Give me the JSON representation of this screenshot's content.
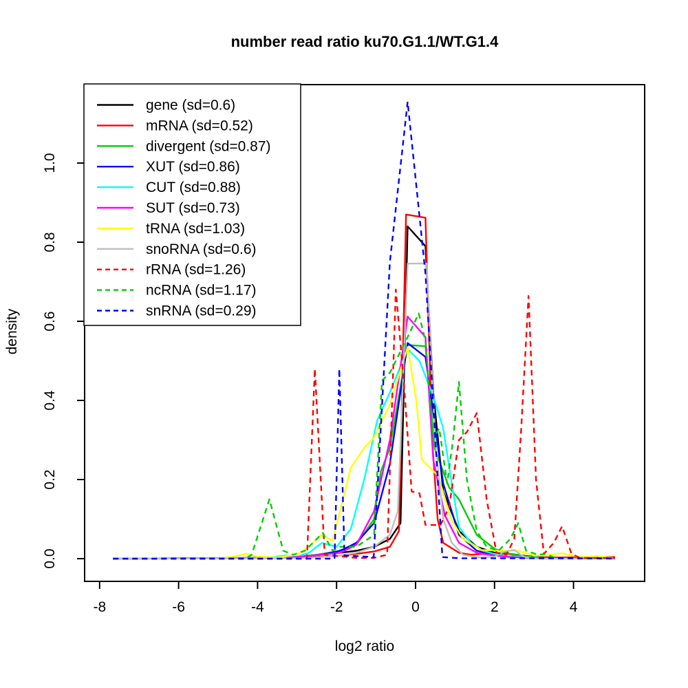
{
  "chart_data": {
    "type": "line",
    "title": "number read ratio ku70.G1.1/WT.G1.4",
    "xlabel": "log2 ratio",
    "ylabel": "density",
    "xlim": [
      -8.4,
      5.8
    ],
    "ylim": [
      -0.05,
      1.2
    ],
    "grid": false,
    "legend_position": "top-left",
    "x_ticks": [
      -8,
      -6,
      -4,
      -2,
      0,
      2,
      4
    ],
    "y_ticks": [
      {
        "value": 0.0,
        "label": "0.0"
      },
      {
        "value": 0.2,
        "label": "0.2"
      },
      {
        "value": 0.4,
        "label": "0.4"
      },
      {
        "value": 0.6,
        "label": "0.6"
      },
      {
        "value": 0.8,
        "label": "0.8"
      },
      {
        "value": 1.0,
        "label": "1.0"
      }
    ],
    "series": [
      {
        "name": "gene",
        "label": "gene (sd=0.6)",
        "color": "#000000",
        "dashed": false,
        "points": [
          [
            -7.66,
            0
          ],
          [
            -3.5,
            0.002
          ],
          [
            -3,
            0.005
          ],
          [
            -2.4,
            0.01
          ],
          [
            -1.9,
            0.015
          ],
          [
            -1.5,
            0.02
          ],
          [
            -1.05,
            0.03
          ],
          [
            -0.65,
            0.05
          ],
          [
            -0.38,
            0.09
          ],
          [
            -0.2,
            0.84
          ],
          [
            0.25,
            0.79
          ],
          [
            0.45,
            0.42
          ],
          [
            0.7,
            0.17
          ],
          [
            1.1,
            0.07
          ],
          [
            1.55,
            0.03
          ],
          [
            2,
            0.015
          ],
          [
            2.4,
            0.012
          ],
          [
            2.85,
            0.006
          ],
          [
            3.3,
            0.003
          ],
          [
            4.15,
            0.001
          ],
          [
            5.05,
            0.001
          ]
        ]
      },
      {
        "name": "mRNA",
        "label": "mRNA (sd=0.52)",
        "color": "#FF0000",
        "dashed": false,
        "points": [
          [
            -7.66,
            0
          ],
          [
            -3.5,
            0.001
          ],
          [
            -2.8,
            0.003
          ],
          [
            -2.35,
            0.005
          ],
          [
            -1.9,
            0.008
          ],
          [
            -1.5,
            0.012
          ],
          [
            -1.05,
            0.018
          ],
          [
            -0.65,
            0.03
          ],
          [
            -0.42,
            0.07
          ],
          [
            -0.24,
            0.87
          ],
          [
            0.25,
            0.862
          ],
          [
            0.42,
            0.3
          ],
          [
            0.56,
            0.1
          ],
          [
            0.7,
            0.04
          ],
          [
            1.1,
            0.015
          ],
          [
            1.4,
            0.01
          ],
          [
            1.7,
            0.012
          ],
          [
            2,
            0.008
          ],
          [
            2.3,
            0.014
          ],
          [
            2.6,
            0.006
          ],
          [
            3,
            0.004
          ],
          [
            3.7,
            0.003
          ],
          [
            4.3,
            0.004
          ],
          [
            5.05,
            0.004
          ]
        ]
      },
      {
        "name": "divergent",
        "label": "divergent (sd=0.87)",
        "color": "#00CD00",
        "dashed": false,
        "points": [
          [
            -7.66,
            0
          ],
          [
            -3.5,
            0.002
          ],
          [
            -3,
            0.005
          ],
          [
            -2.5,
            0.01
          ],
          [
            -2,
            0.018
          ],
          [
            -1.5,
            0.035
          ],
          [
            -1.05,
            0.1
          ],
          [
            -0.88,
            0.22
          ],
          [
            -0.65,
            0.28
          ],
          [
            -0.2,
            0.54
          ],
          [
            0.25,
            0.537
          ],
          [
            0.48,
            0.28
          ],
          [
            0.7,
            0.22
          ],
          [
            0.85,
            0.18
          ],
          [
            1.1,
            0.15
          ],
          [
            1.55,
            0.06
          ],
          [
            2,
            0.025
          ],
          [
            2.4,
            0.012
          ],
          [
            2.85,
            0.005
          ],
          [
            3.3,
            0.002
          ],
          [
            4.15,
            0.001
          ],
          [
            5.05,
            0
          ]
        ]
      },
      {
        "name": "XUT",
        "label": "XUT (sd=0.86)",
        "color": "#0000FF",
        "dashed": false,
        "points": [
          [
            -7.66,
            0
          ],
          [
            -3.5,
            0.002
          ],
          [
            -3,
            0.004
          ],
          [
            -2.4,
            0.01
          ],
          [
            -1.9,
            0.02
          ],
          [
            -1.5,
            0.04
          ],
          [
            -1.05,
            0.09
          ],
          [
            -0.65,
            0.24
          ],
          [
            -0.2,
            0.545
          ],
          [
            0.25,
            0.51
          ],
          [
            0.7,
            0.19
          ],
          [
            1.1,
            0.06
          ],
          [
            1.55,
            0.02
          ],
          [
            2,
            0.01
          ],
          [
            2.4,
            0.005
          ],
          [
            2.85,
            0.003
          ],
          [
            3.3,
            0.002
          ],
          [
            4.15,
            0.001
          ],
          [
            5.05,
            0
          ]
        ]
      },
      {
        "name": "CUT",
        "label": "CUT (sd=0.88)",
        "color": "#00FFFF",
        "dashed": false,
        "points": [
          [
            -7.66,
            0
          ],
          [
            -4,
            0.001
          ],
          [
            -3.6,
            0.004
          ],
          [
            -3.3,
            0.008
          ],
          [
            -3,
            0.005
          ],
          [
            -2.7,
            0.015
          ],
          [
            -2.37,
            0.04
          ],
          [
            -2,
            0.03
          ],
          [
            -1.64,
            0.075
          ],
          [
            -1.3,
            0.2
          ],
          [
            -0.97,
            0.35
          ],
          [
            -0.65,
            0.42
          ],
          [
            -0.2,
            0.53
          ],
          [
            0.1,
            0.5
          ],
          [
            0.45,
            0.41
          ],
          [
            0.7,
            0.33
          ],
          [
            0.9,
            0.2
          ],
          [
            1.1,
            0.08
          ],
          [
            1.4,
            0.04
          ],
          [
            1.7,
            0.02
          ],
          [
            2,
            0.012
          ],
          [
            2.4,
            0.006
          ],
          [
            2.85,
            0.003
          ],
          [
            3.3,
            0.001
          ],
          [
            5.05,
            0
          ]
        ]
      },
      {
        "name": "SUT",
        "label": "SUT (sd=0.73)",
        "color": "#FF00FF",
        "dashed": false,
        "points": [
          [
            -7.66,
            0
          ],
          [
            -3.5,
            0.002
          ],
          [
            -3,
            0.004
          ],
          [
            -2.4,
            0.01
          ],
          [
            -1.9,
            0.015
          ],
          [
            -1.5,
            0.035
          ],
          [
            -1.05,
            0.12
          ],
          [
            -0.65,
            0.3
          ],
          [
            -0.2,
            0.612
          ],
          [
            0.25,
            0.56
          ],
          [
            0.45,
            0.25
          ],
          [
            0.74,
            0.11
          ],
          [
            1.1,
            0.04
          ],
          [
            1.55,
            0.015
          ],
          [
            2,
            0.008
          ],
          [
            2.4,
            0.004
          ],
          [
            2.85,
            0.002
          ],
          [
            3.3,
            0.001
          ],
          [
            5.05,
            0
          ]
        ]
      },
      {
        "name": "tRNA",
        "label": "tRNA (sd=1.03)",
        "color": "#FFFF00",
        "dashed": false,
        "points": [
          [
            -7.66,
            0
          ],
          [
            -5,
            0.001
          ],
          [
            -4.6,
            0.005
          ],
          [
            -4.3,
            0.012
          ],
          [
            -4,
            0.005
          ],
          [
            -3.5,
            0.003
          ],
          [
            -3,
            0.01
          ],
          [
            -2.7,
            0.03
          ],
          [
            -2.39,
            0.06
          ],
          [
            -2.1,
            0.045
          ],
          [
            -1.64,
            0.23
          ],
          [
            -1.3,
            0.28
          ],
          [
            -1.06,
            0.305
          ],
          [
            -0.65,
            0.39
          ],
          [
            -0.2,
            0.535
          ],
          [
            0.02,
            0.4
          ],
          [
            0.16,
            0.25
          ],
          [
            0.57,
            0.21
          ],
          [
            0.9,
            0.1
          ],
          [
            1.2,
            0.05
          ],
          [
            1.67,
            0.022
          ],
          [
            2.2,
            0.02
          ],
          [
            2.6,
            0.02
          ],
          [
            3,
            0.008
          ],
          [
            3.3,
            0.008
          ],
          [
            3.7,
            0.014
          ],
          [
            4.15,
            0.004
          ],
          [
            4.6,
            0.006
          ],
          [
            5.05,
            0.001
          ]
        ]
      },
      {
        "name": "snoRNA",
        "label": "snoRNA (sd=0.6)",
        "color": "#BEBEBE",
        "dashed": false,
        "points": [
          [
            -7.66,
            0
          ],
          [
            -3,
            0.001
          ],
          [
            -2.4,
            0.004
          ],
          [
            -1.9,
            0.008
          ],
          [
            -1.5,
            0.015
          ],
          [
            -1.05,
            0.03
          ],
          [
            -0.65,
            0.06
          ],
          [
            -0.45,
            0.12
          ],
          [
            -0.2,
            0.746
          ],
          [
            0.28,
            0.746
          ],
          [
            0.5,
            0.3
          ],
          [
            0.7,
            0.1
          ],
          [
            0.92,
            0.04
          ],
          [
            1.2,
            0.01
          ],
          [
            1.6,
            0.003
          ],
          [
            2,
            0.005
          ],
          [
            2.25,
            0.018
          ],
          [
            2.5,
            0.022
          ],
          [
            2.75,
            0.004
          ],
          [
            3.1,
            0
          ],
          [
            5.05,
            0
          ]
        ]
      },
      {
        "name": "rRNA",
        "label": "rRNA (sd=1.26)",
        "color": "#FF0000",
        "dashed": true,
        "points": [
          [
            -7.66,
            0
          ],
          [
            -2.75,
            0
          ],
          [
            -2.55,
            0.48
          ],
          [
            -2.3,
            0.01
          ],
          [
            -1.5,
            0.002
          ],
          [
            -1.05,
            0.002
          ],
          [
            -0.72,
            0.01
          ],
          [
            -0.5,
            0.68
          ],
          [
            -0.3,
            0.45
          ],
          [
            -0.1,
            0.17
          ],
          [
            0.1,
            0.165
          ],
          [
            0.25,
            0.085
          ],
          [
            0.63,
            0.085
          ],
          [
            0.85,
            0.13
          ],
          [
            1.1,
            0.3
          ],
          [
            1.3,
            0.32
          ],
          [
            1.55,
            0.368
          ],
          [
            1.8,
            0.15
          ],
          [
            2.05,
            0.015
          ],
          [
            2.3,
            0.01
          ],
          [
            2.5,
            0.05
          ],
          [
            2.67,
            0.32
          ],
          [
            2.86,
            0.664
          ],
          [
            3.05,
            0.2
          ],
          [
            3.25,
            0.012
          ],
          [
            3.5,
            0.04
          ],
          [
            3.71,
            0.082
          ],
          [
            3.95,
            0.012
          ],
          [
            4.16,
            0.002
          ],
          [
            5.05,
            0.002
          ]
        ]
      },
      {
        "name": "ncRNA",
        "label": "ncRNA (sd=1.17)",
        "color": "#00CD00",
        "dashed": true,
        "points": [
          [
            -7.66,
            0
          ],
          [
            -4.3,
            0.001
          ],
          [
            -4.15,
            0.01
          ],
          [
            -3.7,
            0.15
          ],
          [
            -3.35,
            0.02
          ],
          [
            -3.1,
            0.01
          ],
          [
            -2.8,
            0.02
          ],
          [
            -2.35,
            0.065
          ],
          [
            -2.1,
            0.02
          ],
          [
            -1.9,
            0.03
          ],
          [
            -1.5,
            0.03
          ],
          [
            -1.05,
            0.06
          ],
          [
            -0.85,
            0.45
          ],
          [
            -0.65,
            0.47
          ],
          [
            -0.2,
            0.56
          ],
          [
            0.08,
            0.62
          ],
          [
            0.25,
            0.55
          ],
          [
            0.45,
            0.3
          ],
          [
            0.6,
            0.33
          ],
          [
            0.8,
            0.19
          ],
          [
            0.95,
            0.3
          ],
          [
            1.1,
            0.447
          ],
          [
            1.3,
            0.2
          ],
          [
            1.55,
            0.07
          ],
          [
            1.8,
            0.03
          ],
          [
            2.1,
            0.02
          ],
          [
            2.4,
            0.05
          ],
          [
            2.6,
            0.09
          ],
          [
            2.8,
            0.02
          ],
          [
            3.1,
            0.01
          ],
          [
            3.3,
            0.012
          ],
          [
            3.55,
            0.001
          ],
          [
            5.05,
            0
          ]
        ]
      },
      {
        "name": "snRNA",
        "label": "snRNA (sd=0.29)",
        "color": "#0000FF",
        "dashed": true,
        "points": [
          [
            -7.66,
            0
          ],
          [
            -2.05,
            0
          ],
          [
            -1.93,
            0.48
          ],
          [
            -1.8,
            0.008
          ],
          [
            -1.06,
            0.004
          ],
          [
            -0.65,
            0.75
          ],
          [
            -0.2,
            1.155
          ],
          [
            0.25,
            0.72
          ],
          [
            0.68,
            0.004
          ],
          [
            1.1,
            0.001
          ],
          [
            5.05,
            0.001
          ]
        ]
      }
    ]
  }
}
